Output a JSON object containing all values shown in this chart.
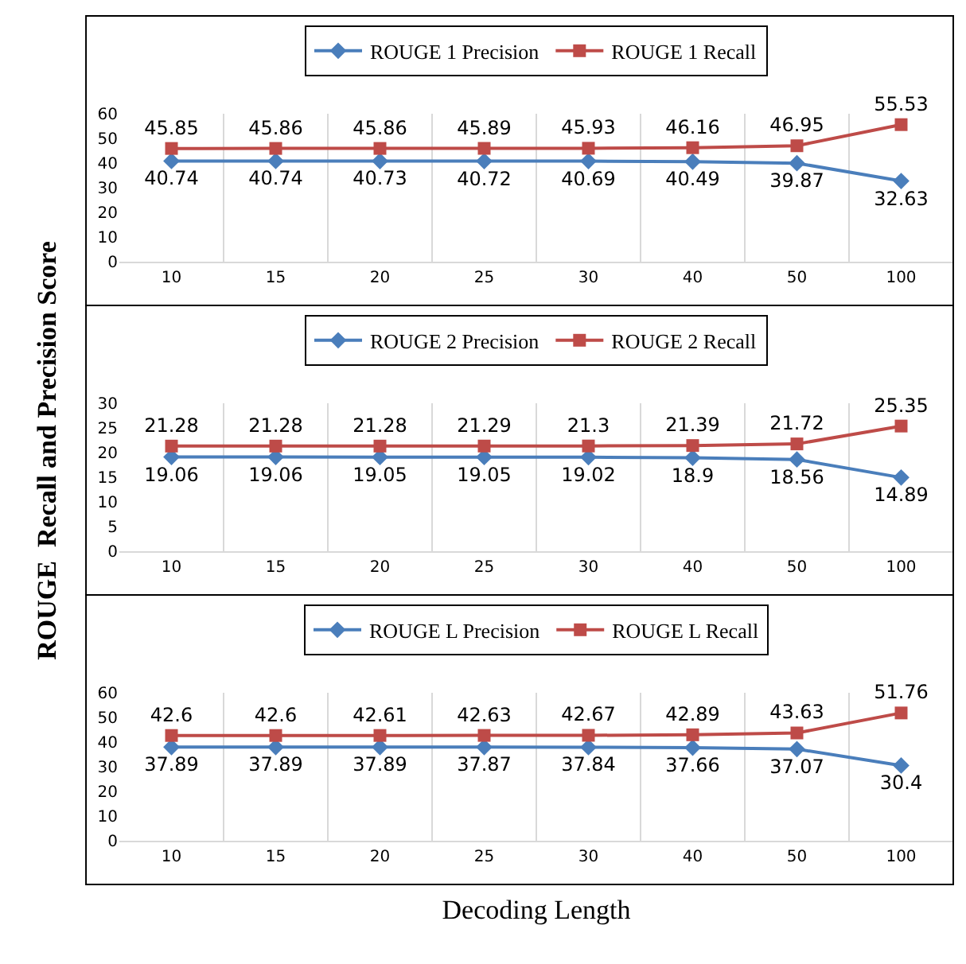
{
  "chart_data": [
    {
      "type": "line",
      "categories": [
        "10",
        "15",
        "20",
        "25",
        "30",
        "40",
        "50",
        "100"
      ],
      "ylim": [
        0,
        60
      ],
      "yticks": [
        0,
        10,
        20,
        30,
        40,
        50,
        60
      ],
      "grid": "x",
      "legend": "top",
      "data_labels": true,
      "series": [
        {
          "name": "ROUGE 1 Precision",
          "color": "#4a7ebb",
          "marker": "diamond",
          "values": [
            40.74,
            40.74,
            40.73,
            40.72,
            40.69,
            40.49,
            39.87,
            32.63
          ]
        },
        {
          "name": "ROUGE 1 Recall",
          "color": "#be4b48",
          "marker": "square",
          "values": [
            45.85,
            45.86,
            45.86,
            45.89,
            45.93,
            46.16,
            46.95,
            55.53
          ]
        }
      ]
    },
    {
      "type": "line",
      "ylabel": "ROUGE  Recall and Precision Score",
      "categories": [
        "10",
        "15",
        "20",
        "25",
        "30",
        "40",
        "50",
        "100"
      ],
      "ylim": [
        0,
        30
      ],
      "yticks": [
        0,
        5,
        10,
        15,
        20,
        25,
        30
      ],
      "grid": "x",
      "legend": "top",
      "data_labels": true,
      "series": [
        {
          "name": "ROUGE 2 Precision",
          "color": "#4a7ebb",
          "marker": "diamond",
          "values": [
            19.06,
            19.06,
            19.05,
            19.05,
            19.02,
            18.9,
            18.56,
            14.89
          ]
        },
        {
          "name": "ROUGE 2 Recall",
          "color": "#be4b48",
          "marker": "square",
          "values": [
            21.28,
            21.28,
            21.28,
            21.29,
            21.3,
            21.39,
            21.72,
            25.35
          ]
        }
      ]
    },
    {
      "type": "line",
      "xlabel": "Decoding Length",
      "categories": [
        "10",
        "15",
        "20",
        "25",
        "30",
        "40",
        "50",
        "100"
      ],
      "ylim": [
        0,
        60
      ],
      "yticks": [
        0,
        10,
        20,
        30,
        40,
        50,
        60
      ],
      "grid": "x",
      "legend": "top",
      "data_labels": true,
      "series": [
        {
          "name": "ROUGE L Precision",
          "color": "#4a7ebb",
          "marker": "diamond",
          "values": [
            37.89,
            37.89,
            37.89,
            37.87,
            37.84,
            37.66,
            37.07,
            30.4
          ]
        },
        {
          "name": "ROUGE L Recall",
          "color": "#be4b48",
          "marker": "square",
          "values": [
            42.6,
            42.6,
            42.61,
            42.63,
            42.67,
            42.89,
            43.63,
            51.76
          ]
        }
      ]
    }
  ]
}
